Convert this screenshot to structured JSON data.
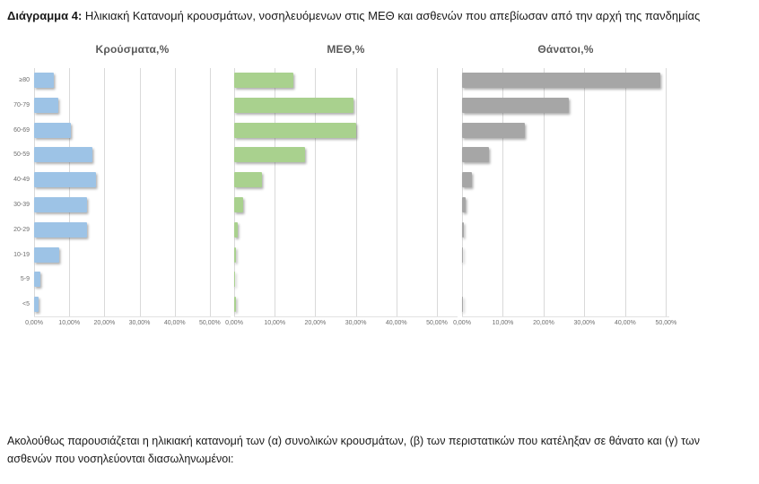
{
  "heading": {
    "label_bold": "Διάγραμμα 4:",
    "text": " Ηλικιακή Κατανομή κρουσμάτων, νοσηλευόμενων στις ΜΕΘ και ασθενών που απεβίωσαν από την αρχή της πανδημίας"
  },
  "footer_paragraph": "Ακολούθως παρουσιάζεται η ηλικιακή κατανομή των (α) συνολικών κρουσμάτων, (β) των περιστατικών που κατέληξαν σε θάνατο και (γ) των ασθενών που νοσηλεύονται διασωληνωμένοι:",
  "colors": {
    "cases_bar": "#9DC3E6",
    "icu_bar": "#A9D18E",
    "deaths_bar": "#A6A6A6",
    "gridline": "#D9D9D9",
    "axis_text": "#6E6E6E",
    "chart_title_text": "#595959"
  },
  "chart_data": [
    {
      "type": "bar",
      "orientation": "horizontal",
      "title": "Κρούσματα,%",
      "categories": [
        "≥80",
        "70-79",
        "60-69",
        "50-59",
        "40-49",
        "30-39",
        "20-29",
        "10-19",
        "5-9",
        "<5"
      ],
      "values": [
        5.7,
        6.8,
        10.4,
        16.7,
        17.7,
        15.0,
        15.1,
        7.2,
        1.7,
        1.4
      ],
      "color": "#9DC3E6",
      "x_ticks": [
        "0,00%",
        "10,00%",
        "20,00%",
        "30,00%",
        "40,00%",
        "50,00%"
      ],
      "x_tick_values": [
        0,
        10,
        20,
        30,
        40,
        50
      ],
      "xlim": [
        0,
        55.9
      ],
      "grid": true,
      "legend": false
    },
    {
      "type": "bar",
      "orientation": "horizontal",
      "title": "ΜΕΘ,%",
      "categories": [
        "≥80",
        "70-79",
        "60-69",
        "50-59",
        "40-49",
        "30-39",
        "20-29",
        "10-19",
        "5-9",
        "<5"
      ],
      "values": [
        14.7,
        29.4,
        30.0,
        17.5,
        6.8,
        2.2,
        0.9,
        0.4,
        0.15,
        0.4
      ],
      "color": "#A9D18E",
      "x_ticks": [
        "0,00%",
        "10,00%",
        "20,00%",
        "30,00%",
        "40,00%",
        "50,00%"
      ],
      "x_tick_values": [
        0,
        10,
        20,
        30,
        40,
        50
      ],
      "xlim": [
        0,
        55.1
      ],
      "grid": true,
      "legend": false
    },
    {
      "type": "bar",
      "orientation": "horizontal",
      "title": "Θάνατοι,%",
      "categories": [
        "≥80",
        "70-79",
        "60-69",
        "50-59",
        "40-49",
        "30-39",
        "20-29",
        "10-19",
        "5-9",
        "<5"
      ],
      "values": [
        48.5,
        26.1,
        15.5,
        6.5,
        2.4,
        0.8,
        0.4,
        0.15,
        0.0,
        0.05
      ],
      "color": "#A6A6A6",
      "x_ticks": [
        "0,00%",
        "10,00%",
        "20,00%",
        "30,00%",
        "40,00%",
        "50,00%"
      ],
      "x_tick_values": [
        0,
        10,
        20,
        30,
        40,
        50
      ],
      "xlim": [
        0,
        50.8
      ],
      "grid": true,
      "legend": false
    }
  ]
}
